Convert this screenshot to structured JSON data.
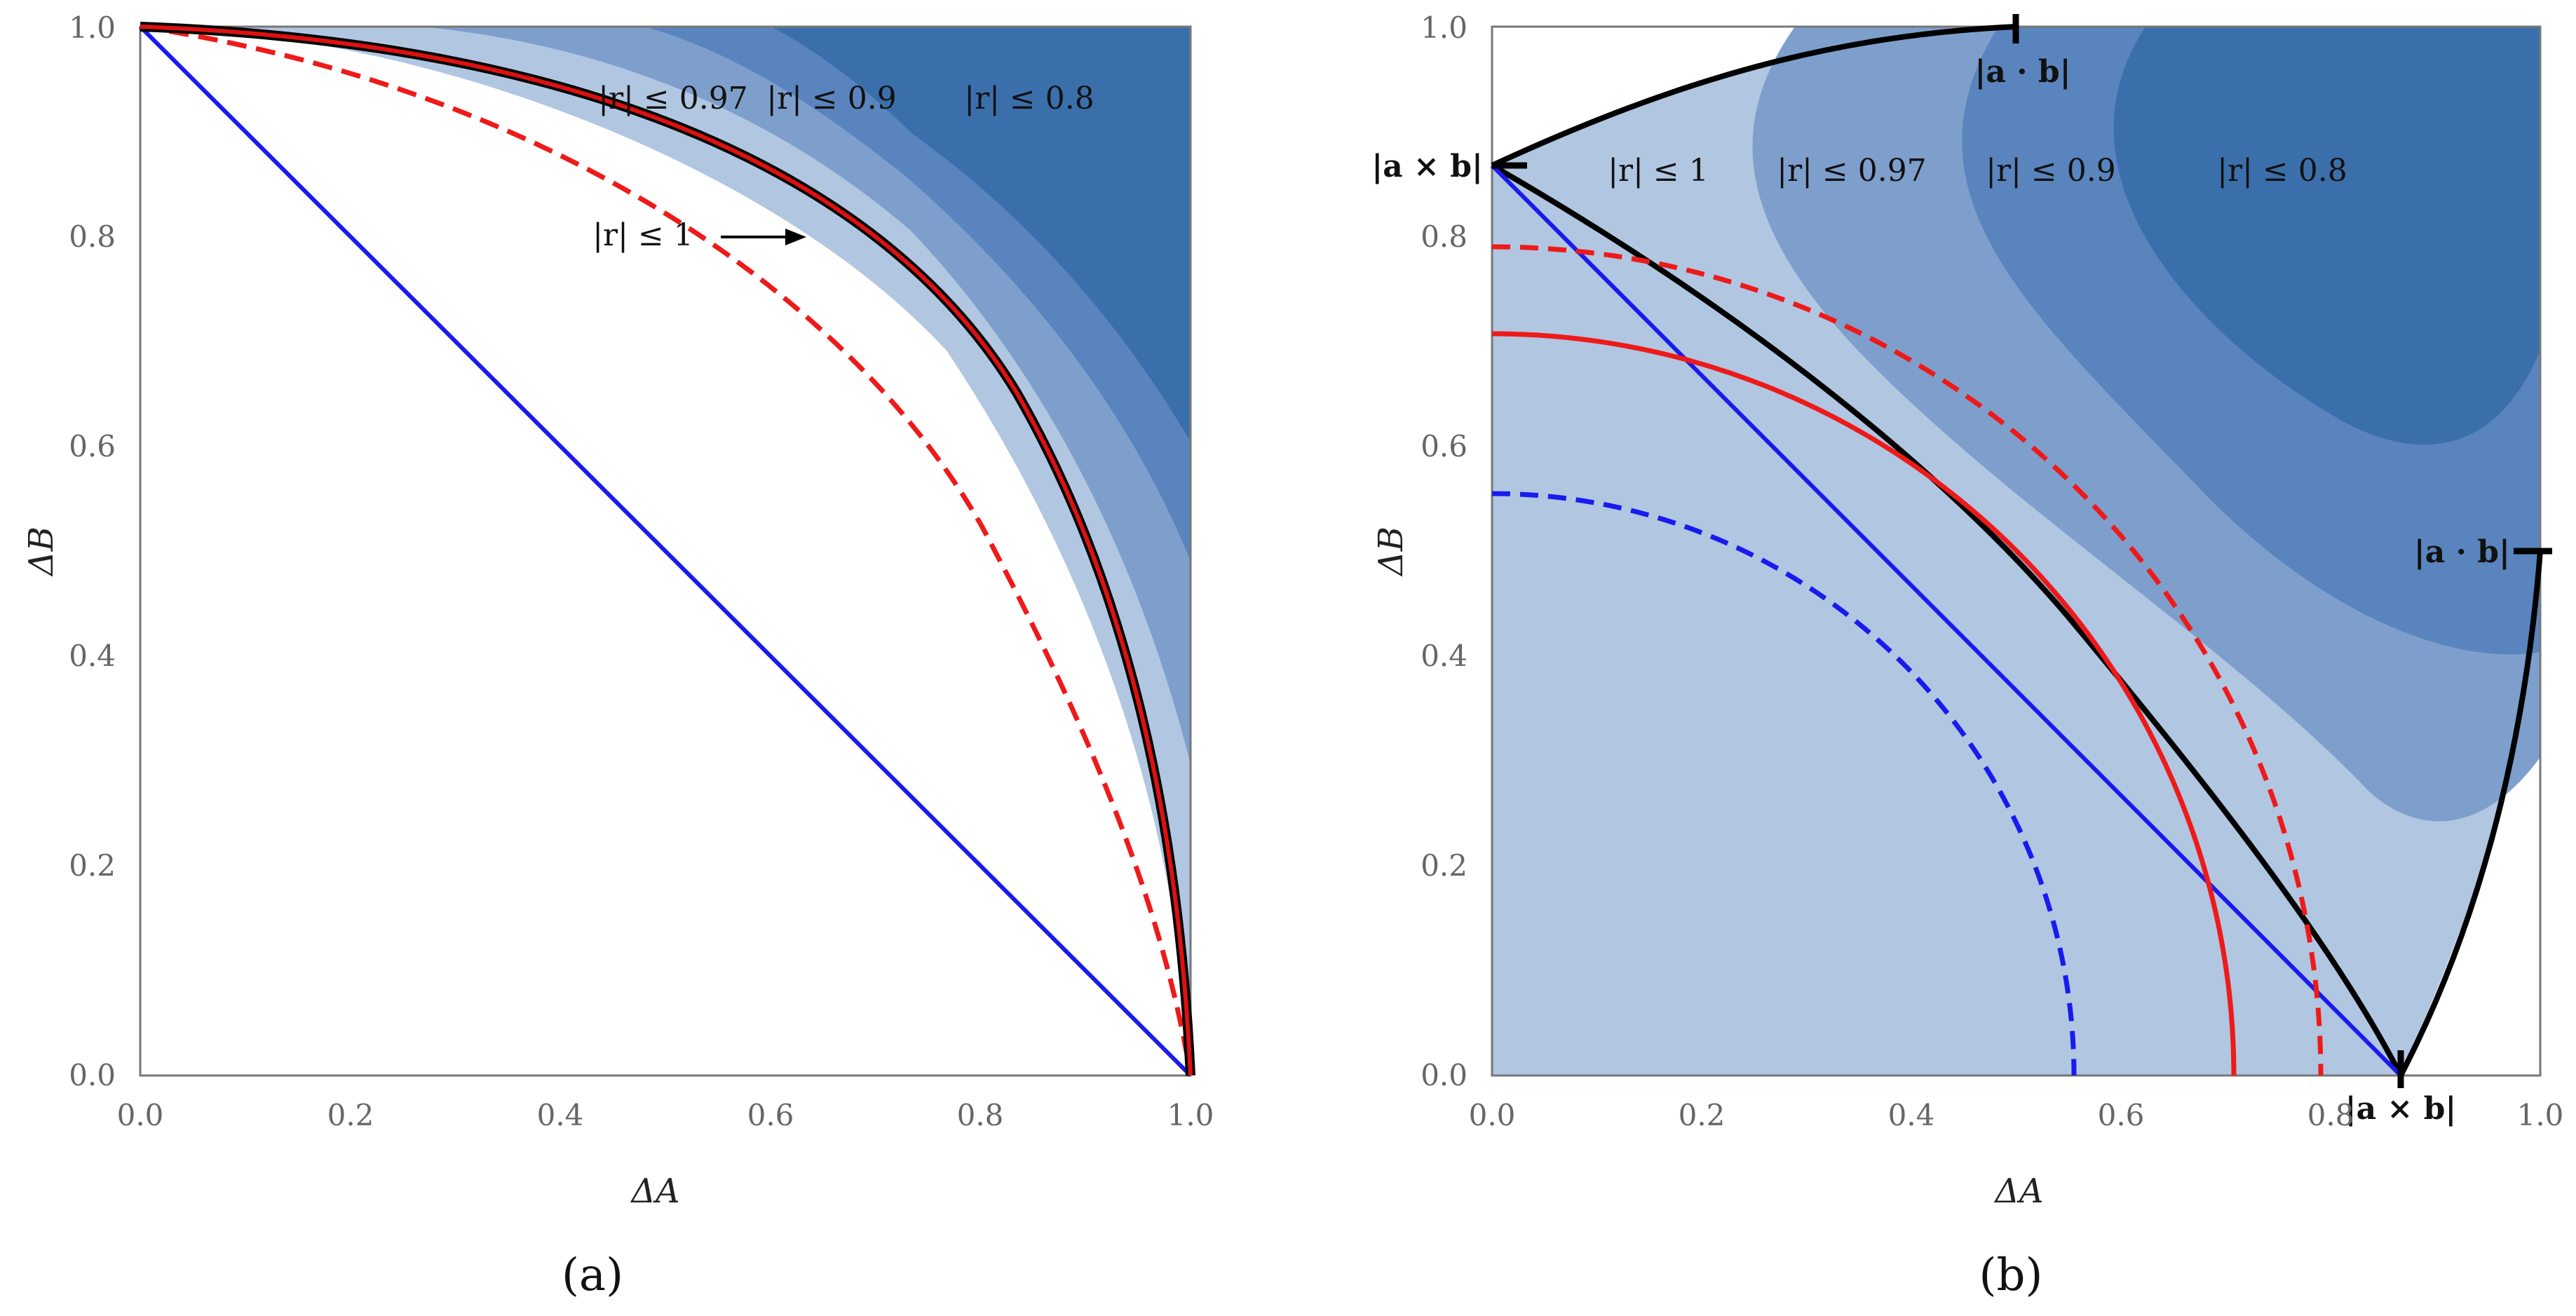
{
  "chart_data": [
    {
      "panel": "(a)",
      "type": "contour",
      "xlabel": "ΔA",
      "ylabel": "ΔB",
      "xlim": [
        0,
        1
      ],
      "ylim": [
        0,
        1
      ],
      "x_ticks": [
        "0.0",
        "0.2",
        "0.4",
        "0.6",
        "0.8",
        "1.0"
      ],
      "y_ticks": [
        "0.0",
        "0.2",
        "0.4",
        "0.6",
        "0.8",
        "1.0"
      ],
      "region_labels": [
        "|r| ≤ 0.97",
        "|r| ≤ 0.9",
        "|r| ≤ 0.8",
        "|r| ≤ 1"
      ],
      "series": [
        {
          "name": "blue line",
          "style": "solid",
          "x": [
            0,
            1
          ],
          "y": [
            1,
            0
          ]
        },
        {
          "name": "red/blue dashed arc",
          "style": "dashed",
          "x": [
            0.0,
            0.3,
            0.5,
            0.7,
            0.9,
            1.0
          ],
          "y": [
            1.0,
            0.93,
            0.79,
            0.59,
            0.31,
            0.0
          ]
        },
        {
          "name": "red boundary arc",
          "style": "solid",
          "x": [
            0.0,
            0.3,
            0.5,
            0.7,
            0.9,
            1.0
          ],
          "y": [
            1.0,
            0.97,
            0.89,
            0.72,
            0.41,
            0.0
          ]
        }
      ]
    },
    {
      "panel": "(b)",
      "type": "contour",
      "xlabel": "ΔA",
      "ylabel": "ΔB",
      "xlim": [
        0,
        1
      ],
      "ylim": [
        0,
        1
      ],
      "x_ticks": [
        "0.0",
        "0.2",
        "0.4",
        "0.6",
        "0.8",
        "1.0"
      ],
      "y_ticks": [
        "0.0",
        "0.2",
        "0.4",
        "0.6",
        "0.8",
        "1.0"
      ],
      "region_labels": [
        "|r| ≤ 1",
        "|r| ≤ 0.97",
        "|r| ≤ 0.9",
        "|r| ≤ 0.8"
      ],
      "markers": {
        "top_dot": "|a · b|",
        "left_cross": "|a × b|",
        "right_dot": "|a · b|",
        "bottom_cross": "|a × b|"
      },
      "series": [
        {
          "name": "blue line",
          "style": "solid",
          "x": [
            0,
            0.866
          ],
          "y": [
            0.866,
            0
          ]
        },
        {
          "name": "blue dashed circle",
          "style": "dashed",
          "radius": 0.555
        },
        {
          "name": "red circle",
          "style": "solid",
          "radius": 0.707
        },
        {
          "name": "red dashed circle",
          "style": "dashed",
          "radius": 0.79
        }
      ]
    }
  ],
  "captions": {
    "a": "(a)",
    "b": "(b)"
  }
}
